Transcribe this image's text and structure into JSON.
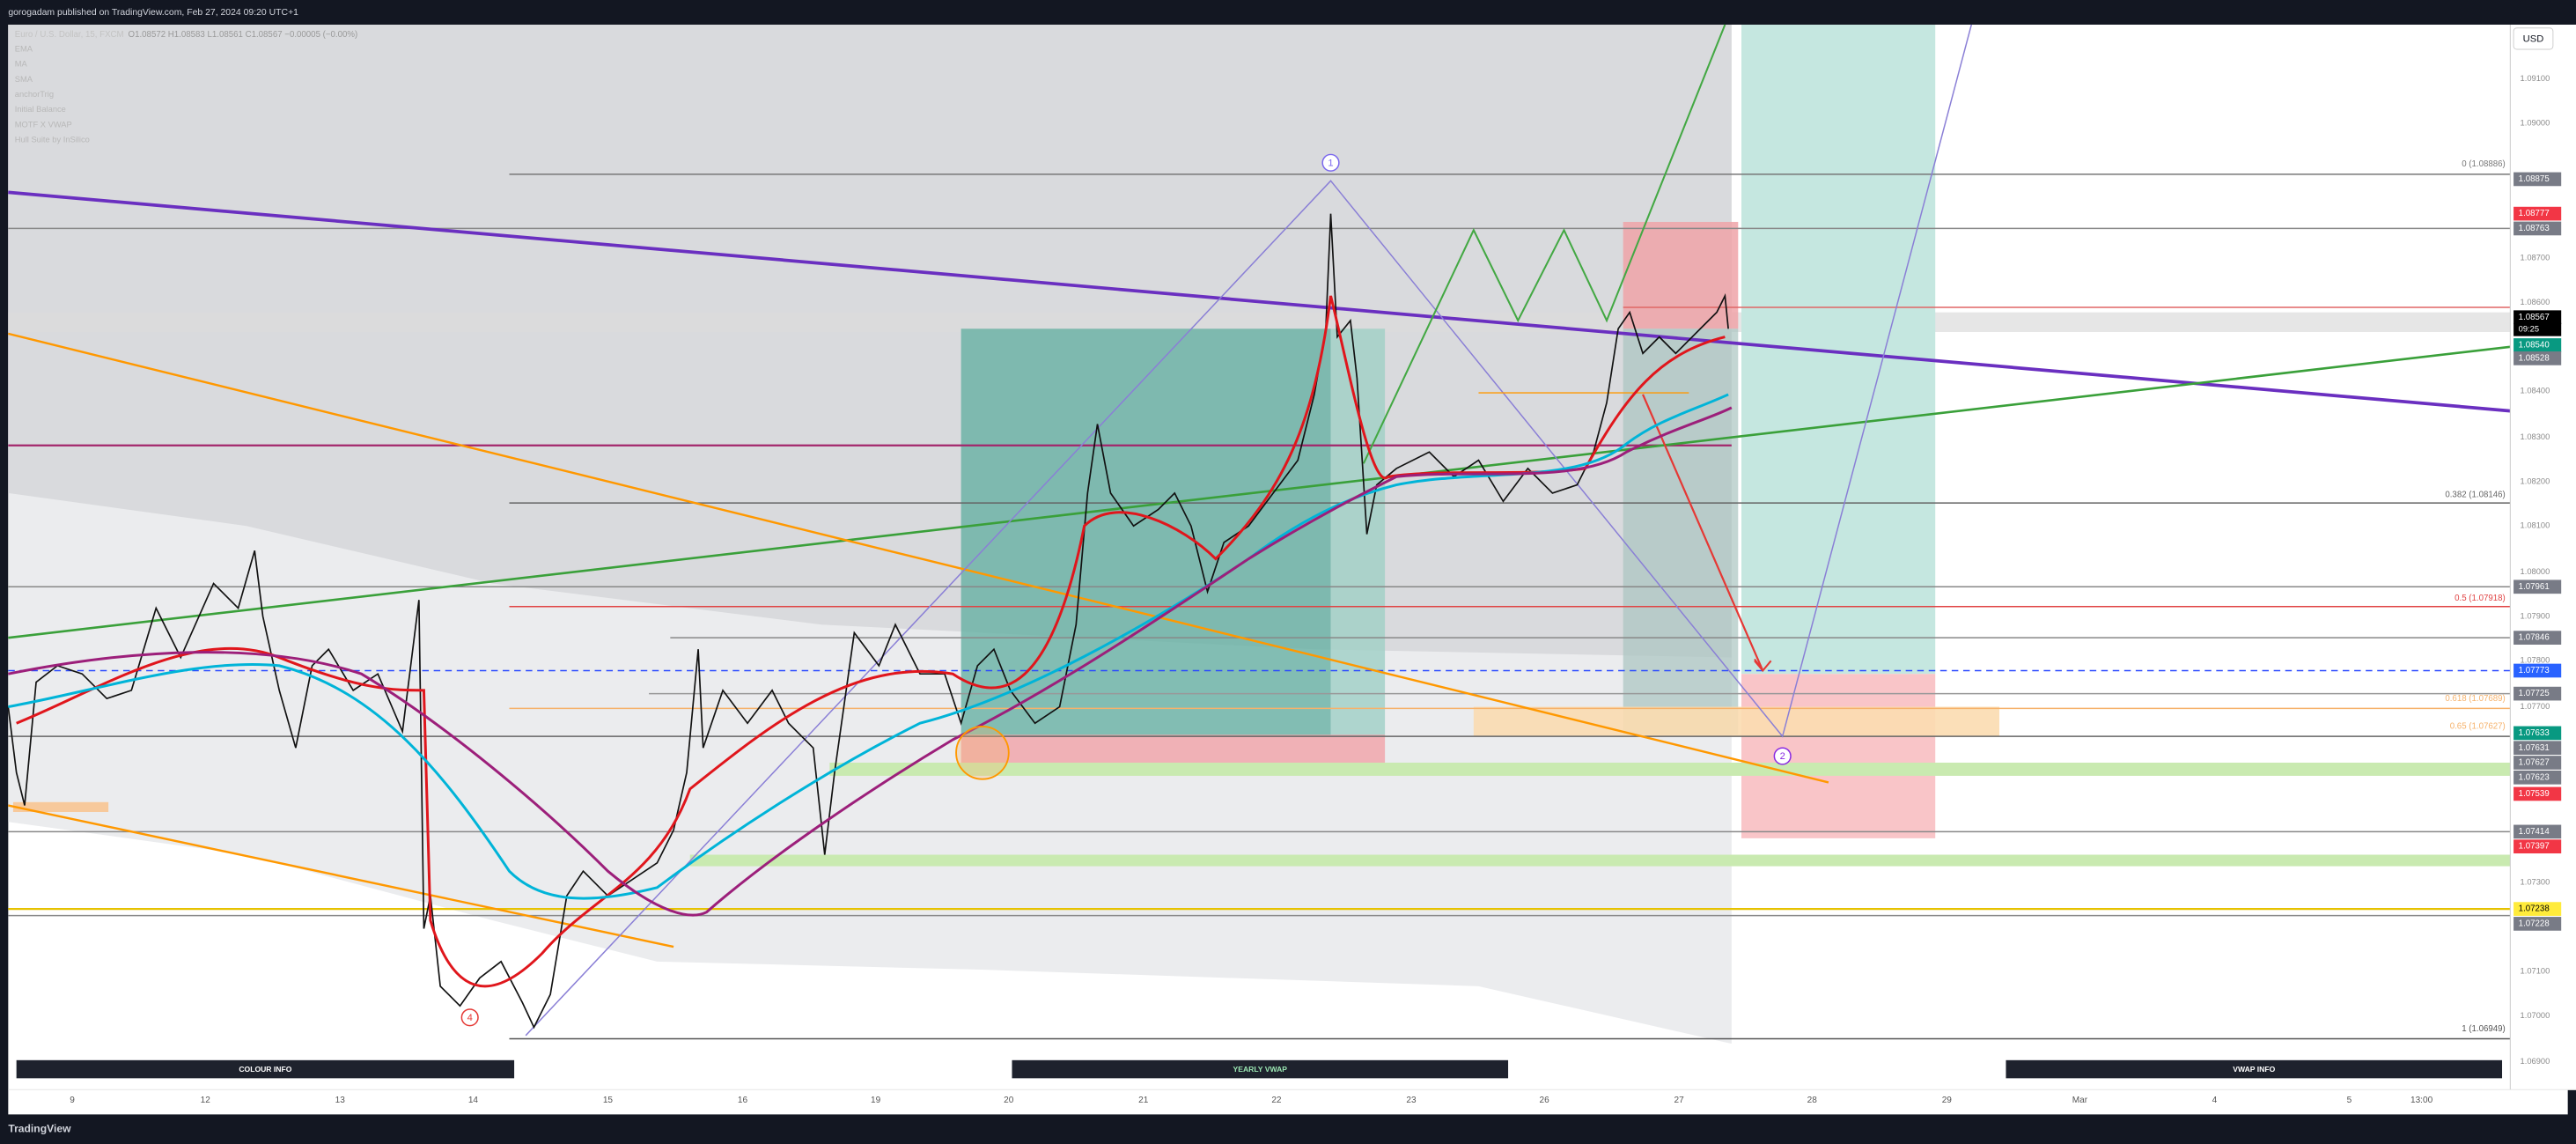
{
  "header": {
    "publisher": "gorogadam published on TradingView.com, Feb 27, 2024 09:20 UTC+1"
  },
  "legend": {
    "symbol": "Euro / U.S. Dollar, 15, FXCM",
    "ohlc": "O1.08572 H1.08583 L1.08561 C1.08567 −0.00005 (−0.00%)",
    "indicators": [
      "EMA",
      "MA",
      "SMA",
      "anchorTrig",
      "Initial Balance",
      "MOTF X VWAP",
      "Hull Suite by InSilico"
    ]
  },
  "price_axis": {
    "currency": "USD",
    "ticks": [
      "1.09100",
      "1.09000",
      "1.08700",
      "1.08600",
      "1.08400",
      "1.08300",
      "1.08200",
      "1.08100",
      "1.08000",
      "1.07900",
      "1.07800",
      "1.07700",
      "1.07300",
      "1.07100",
      "1.07000",
      "1.06900"
    ],
    "badges": [
      "1.08875",
      "1.08777",
      "1.08763",
      "1.08567",
      "1.08540",
      "1.08528",
      "1.07961",
      "1.07846",
      "1.07773",
      "1.07725",
      "1.07633",
      "1.07631",
      "1.07627",
      "1.07623",
      "1.07539",
      "1.07414",
      "1.07397",
      "1.07238",
      "1.07228"
    ],
    "countdown": "09:25"
  },
  "time_axis": {
    "ticks": [
      "9",
      "12",
      "13",
      "14",
      "15",
      "16",
      "19",
      "20",
      "21",
      "22",
      "23",
      "26",
      "27",
      "28",
      "29",
      "Mar",
      "4",
      "5",
      "13:00"
    ]
  },
  "fib_levels": [
    "0 (1.08886)",
    "0.382 (1.08146)",
    "0.5 (1.07918)",
    "0.618 (1.07689)",
    "0.65 (1.07627)",
    "1 (1.06949)"
  ],
  "markers": [
    "1",
    "2",
    "4"
  ],
  "panels": [
    "COLOUR INFO",
    "YEARLY VWAP",
    "VWAP INFO"
  ],
  "footer": "TradingView"
}
